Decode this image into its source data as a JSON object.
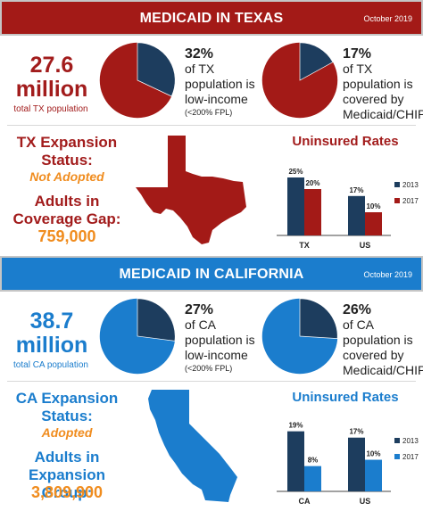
{
  "colors": {
    "tx_primary": "#a31a17",
    "ca_primary": "#1b7dcd",
    "dark_navy": "#1d3d5e",
    "orange": "#f08c1e"
  },
  "texas": {
    "banner_title": "MEDICAID IN TEXAS",
    "banner_date": "October 2019",
    "population_number": "27.6",
    "population_unit": "million",
    "population_label": "total TX population",
    "low_income": {
      "pct": "32%",
      "line1": "of TX",
      "line2": "population is",
      "line3": "low-income",
      "note": "(<200% FPL)",
      "value": 32
    },
    "medicaid": {
      "pct": "17%",
      "line1": "of TX",
      "line2": "population is",
      "line3": "covered by",
      "line4": "Medicaid/CHIP",
      "value": 17
    },
    "expansion_heading_1": "TX Expansion",
    "expansion_heading_2": "Status:",
    "expansion_status": "Not Adopted",
    "group_heading_1": "Adults in",
    "group_heading_2": "Coverage Gap:",
    "group_number": "759,000",
    "map_icon": "texas-map-icon"
  },
  "california": {
    "banner_title": "MEDICAID IN CALIFORNIA",
    "banner_date": "October 2019",
    "population_number": "38.7",
    "population_unit": "million",
    "population_label": "total CA population",
    "low_income": {
      "pct": "27%",
      "line1": "of CA",
      "line2": "population is",
      "line3": "low-income",
      "note": "(<200% FPL)",
      "value": 27
    },
    "medicaid": {
      "pct": "26%",
      "line1": "of CA",
      "line2": "population is",
      "line3": "covered by",
      "line4": "Medicaid/CHIP",
      "value": 26
    },
    "expansion_heading_1": "CA Expansion",
    "expansion_heading_2": "Status:",
    "expansion_status": "Adopted",
    "group_heading_1": "Adults in",
    "group_heading_2": "Expansion Group:",
    "group_number": "3,809,900",
    "map_icon": "california-map-icon"
  },
  "chart_data": [
    {
      "type": "bar",
      "title": "Uninsured Rates",
      "categories": [
        "TX",
        "US"
      ],
      "series": [
        {
          "name": "2013",
          "values": [
            25,
            17
          ],
          "labels": [
            "25%",
            "17%"
          ],
          "color": "#1d3d5e"
        },
        {
          "name": "2017",
          "values": [
            20,
            10
          ],
          "labels": [
            "20%",
            "10%"
          ],
          "color": "#a31a17"
        }
      ],
      "ylim": [
        0,
        30
      ],
      "legend": "right",
      "grid": false
    },
    {
      "type": "bar",
      "title": "Uninsured Rates",
      "categories": [
        "CA",
        "US"
      ],
      "series": [
        {
          "name": "2013",
          "values": [
            19,
            17
          ],
          "labels": [
            "19%",
            "17%"
          ],
          "color": "#1d3d5e"
        },
        {
          "name": "2017",
          "values": [
            8,
            10
          ],
          "labels": [
            "8%",
            "10%"
          ],
          "color": "#1b7dcd"
        }
      ],
      "ylim": [
        0,
        22
      ],
      "legend": "right",
      "grid": false
    }
  ]
}
